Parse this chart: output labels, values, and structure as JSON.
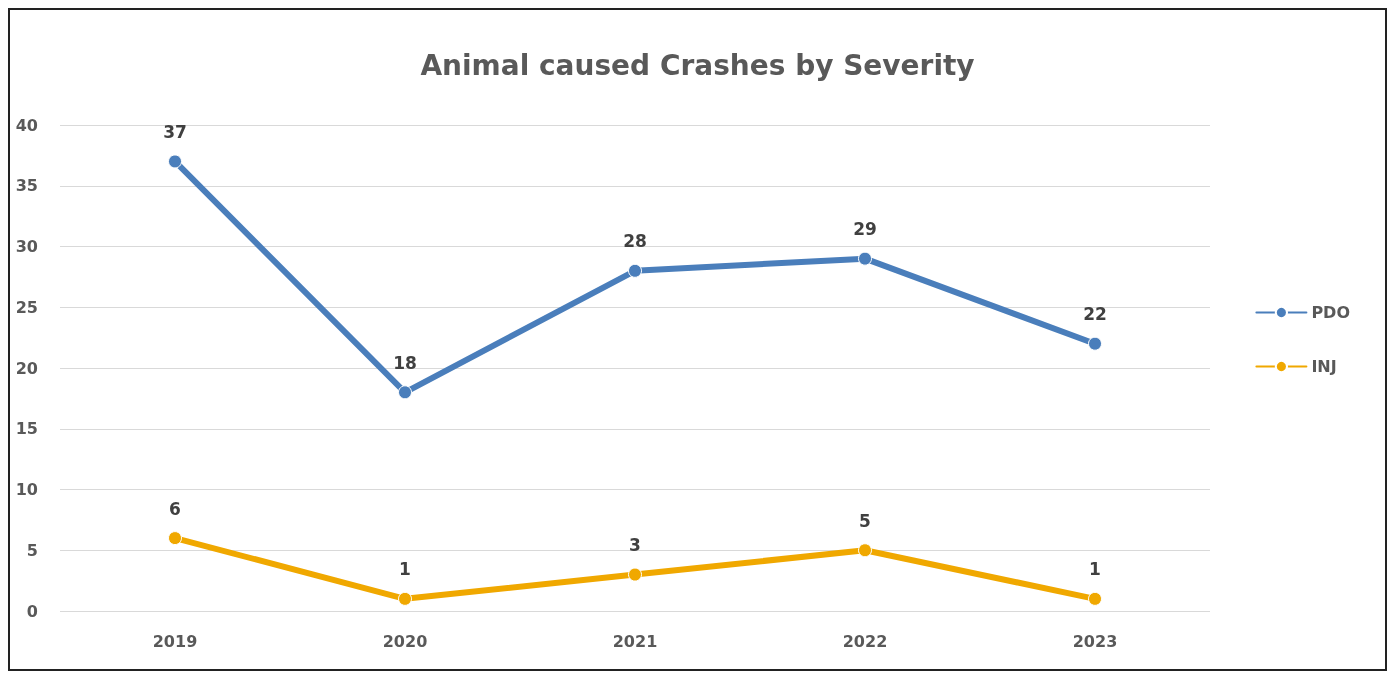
{
  "chart_data": {
    "type": "line",
    "title": "Animal caused Crashes by Severity",
    "categories": [
      "2019",
      "2020",
      "2021",
      "2022",
      "2023"
    ],
    "series": [
      {
        "name": "PDO",
        "color": "#4a7ebb",
        "values": [
          37,
          18,
          28,
          29,
          22
        ]
      },
      {
        "name": "INJ",
        "color": "#f0a800",
        "values": [
          6,
          1,
          3,
          5,
          1
        ]
      }
    ],
    "ylim": [
      0,
      40
    ],
    "yticks": [
      0,
      5,
      10,
      15,
      20,
      25,
      30,
      35,
      40
    ],
    "grid": "y",
    "legend": "right",
    "marker": "circle",
    "line_style": "solid",
    "data_labels": true
  }
}
